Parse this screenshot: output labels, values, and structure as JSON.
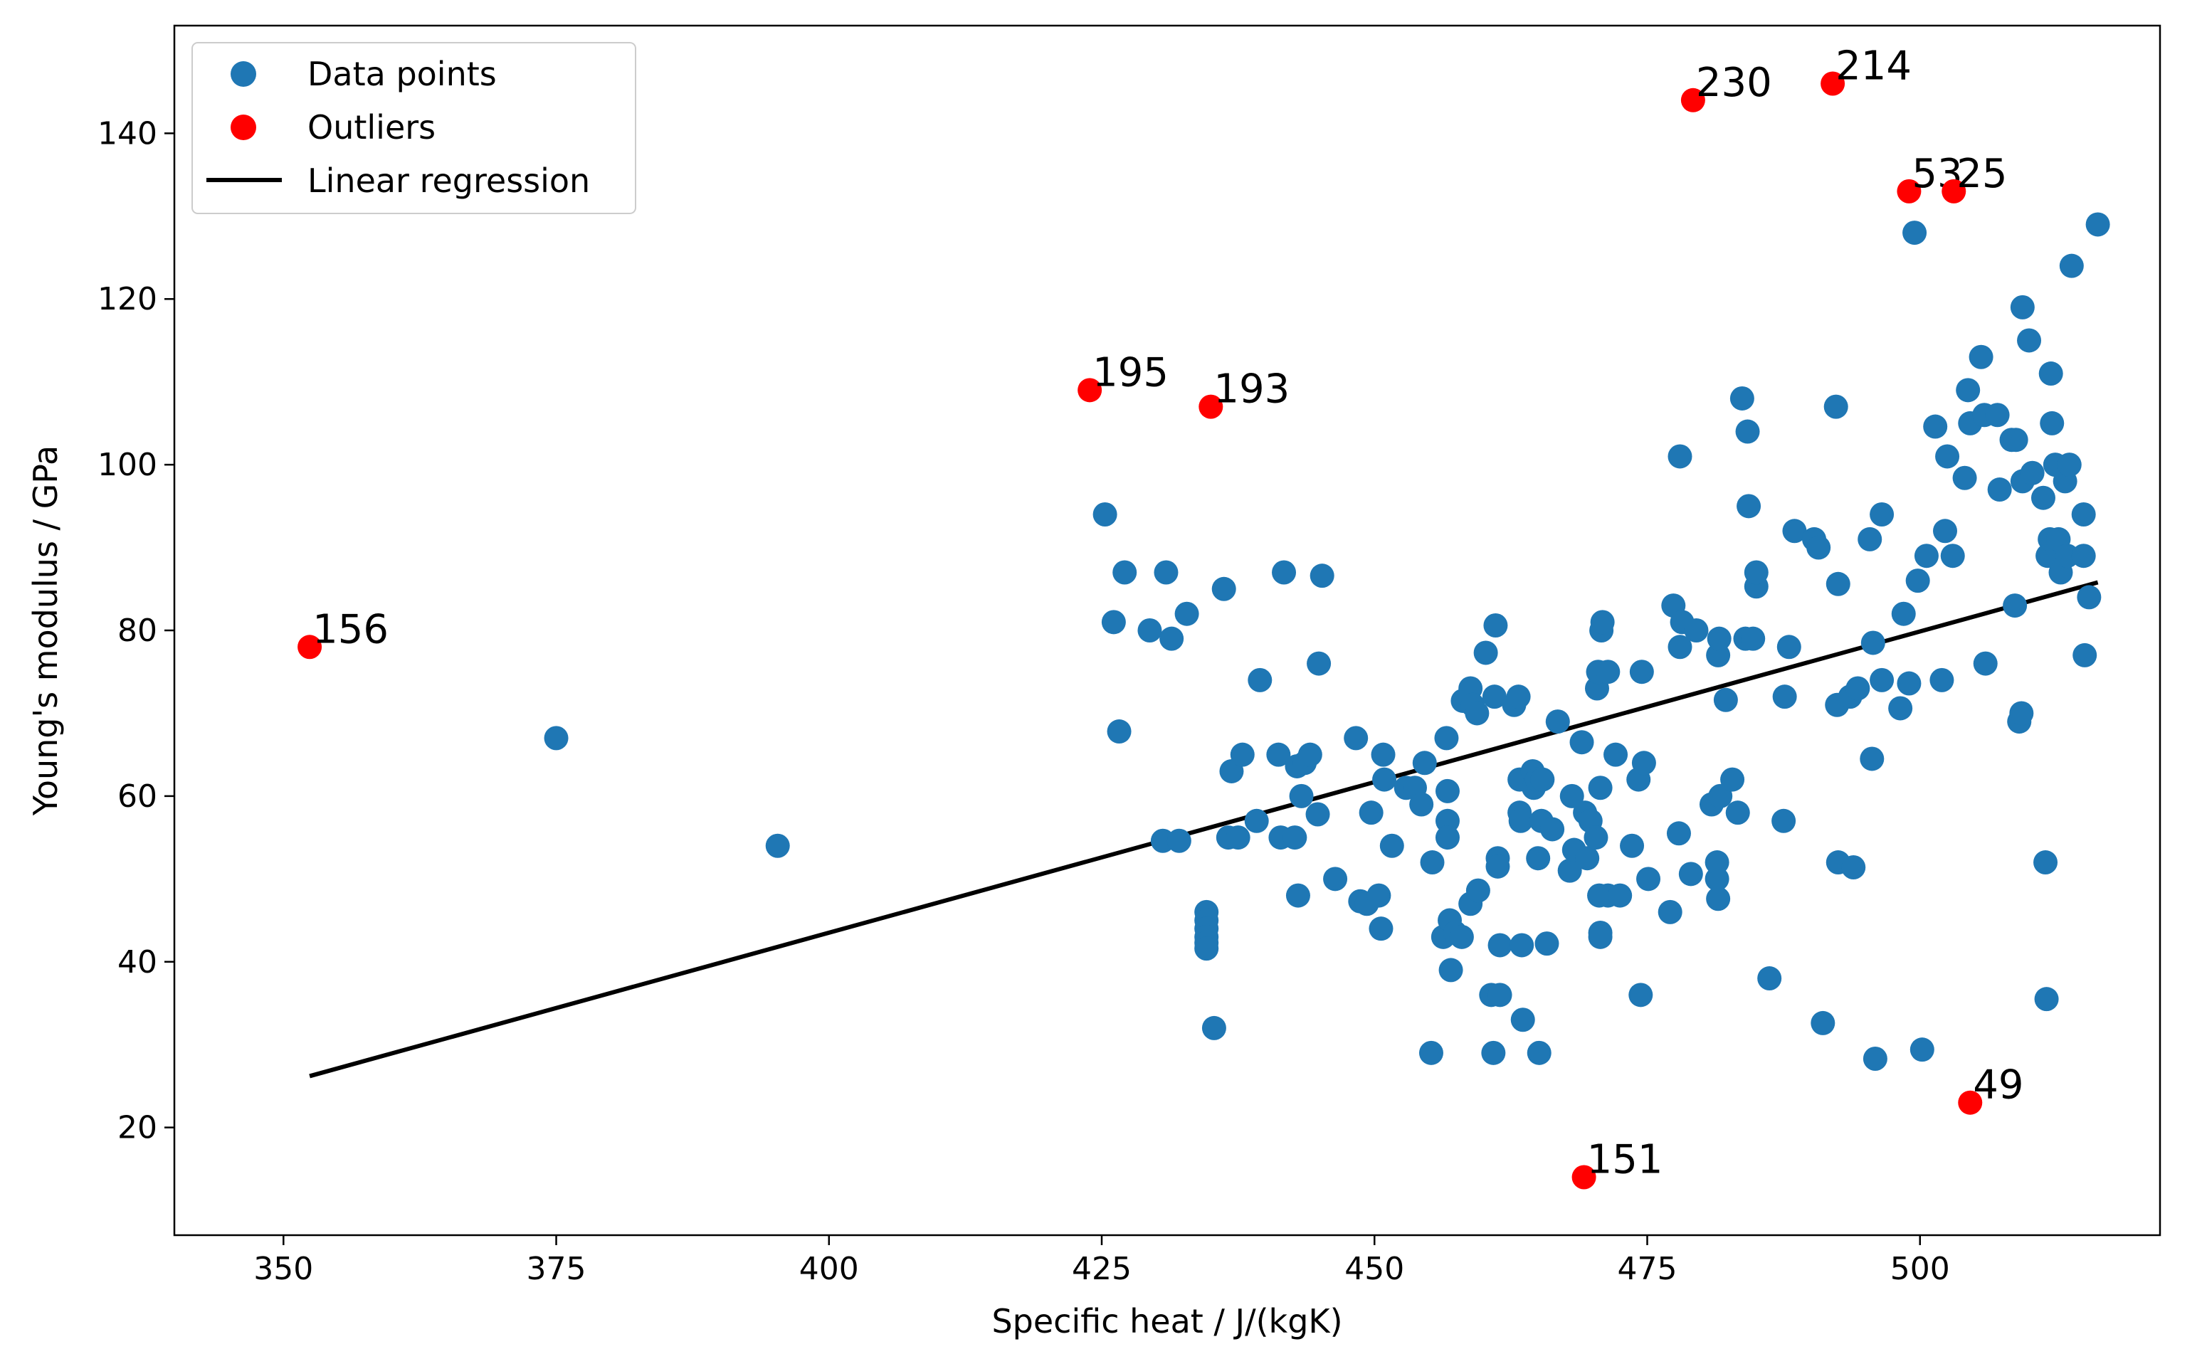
{
  "chart_data": {
    "type": "scatter",
    "xlabel": "Specific heat / J/(kgK)",
    "ylabel": "Young's modulus / GPa",
    "xlim": [
      340,
      522
    ],
    "ylim": [
      7,
      153
    ],
    "xticks": [
      350,
      375,
      400,
      425,
      450,
      475,
      500
    ],
    "yticks": [
      20,
      40,
      60,
      80,
      100,
      120,
      140
    ],
    "legend": {
      "position": "top-left",
      "entries": [
        {
          "label": "Data points",
          "kind": "marker",
          "color": "#1f77b4"
        },
        {
          "label": "Outliers",
          "kind": "marker",
          "color": "#ff0000"
        },
        {
          "label": "Linear regression",
          "kind": "line",
          "color": "#000000"
        }
      ]
    },
    "series": [
      {
        "name": "Data points",
        "color": "#1f77b4",
        "points": [
          [
            375,
            67
          ],
          [
            395.3,
            54
          ],
          [
            425.3,
            94
          ],
          [
            426.1,
            81
          ],
          [
            426.6,
            67.8
          ],
          [
            427.1,
            87
          ],
          [
            429.4,
            80
          ],
          [
            430.6,
            54.6
          ],
          [
            430.9,
            87
          ],
          [
            431.4,
            79
          ],
          [
            432.1,
            54.6
          ],
          [
            432.8,
            82
          ],
          [
            434.6,
            46
          ],
          [
            434.6,
            45
          ],
          [
            434.6,
            44
          ],
          [
            434.6,
            43
          ],
          [
            434.6,
            42.3
          ],
          [
            434.6,
            41.6
          ],
          [
            435.3,
            32
          ],
          [
            436.2,
            85
          ],
          [
            436.6,
            55
          ],
          [
            436.9,
            63
          ],
          [
            437.5,
            55
          ],
          [
            437.9,
            65
          ],
          [
            439.2,
            57
          ],
          [
            439.5,
            74
          ],
          [
            441.2,
            65
          ],
          [
            441.4,
            55
          ],
          [
            441.7,
            87
          ],
          [
            442.7,
            55
          ],
          [
            442.9,
            63.6
          ],
          [
            443,
            48
          ],
          [
            443.3,
            60
          ],
          [
            443.6,
            64
          ],
          [
            444.1,
            65
          ],
          [
            444.8,
            57.8
          ],
          [
            444.9,
            76
          ],
          [
            445.2,
            86.6
          ],
          [
            446.4,
            50
          ],
          [
            448.3,
            67
          ],
          [
            448.7,
            47.3
          ],
          [
            449.3,
            47
          ],
          [
            449.7,
            58
          ],
          [
            450.4,
            48
          ],
          [
            450.6,
            44
          ],
          [
            450.8,
            65
          ],
          [
            450.9,
            62
          ],
          [
            451.6,
            54
          ],
          [
            452.9,
            61
          ],
          [
            453.7,
            61
          ],
          [
            454.3,
            59
          ],
          [
            454.6,
            64
          ],
          [
            455.2,
            29
          ],
          [
            455.3,
            52
          ],
          [
            456.3,
            43
          ],
          [
            456.6,
            67
          ],
          [
            456.7,
            60.6
          ],
          [
            456.7,
            57
          ],
          [
            456.7,
            55
          ],
          [
            456.9,
            45
          ],
          [
            457,
            39
          ],
          [
            457.4,
            43.5
          ],
          [
            458,
            43
          ],
          [
            458.1,
            71.5
          ],
          [
            458.8,
            73
          ],
          [
            458.8,
            47
          ],
          [
            459,
            71
          ],
          [
            459.4,
            70
          ],
          [
            459.5,
            48.6
          ],
          [
            460.2,
            77.3
          ],
          [
            460.7,
            36
          ],
          [
            460.9,
            29
          ],
          [
            461,
            72
          ],
          [
            461.1,
            80.6
          ],
          [
            461.3,
            52.5
          ],
          [
            461.3,
            51.5
          ],
          [
            461.5,
            42
          ],
          [
            461.5,
            36
          ],
          [
            462.8,
            71
          ],
          [
            463.2,
            72
          ],
          [
            463.3,
            62
          ],
          [
            463.3,
            58
          ],
          [
            463.4,
            57
          ],
          [
            463.5,
            42
          ],
          [
            463.6,
            33
          ],
          [
            464.5,
            63
          ],
          [
            464.6,
            61
          ],
          [
            464.9,
            62
          ],
          [
            465,
            52.5
          ],
          [
            465.1,
            29
          ],
          [
            465.3,
            57
          ],
          [
            465.4,
            62
          ],
          [
            465.8,
            42.2
          ],
          [
            466.3,
            56
          ],
          [
            466.8,
            69
          ],
          [
            467.9,
            51
          ],
          [
            468.1,
            60
          ],
          [
            468.3,
            53.5
          ],
          [
            469,
            66.5
          ],
          [
            469.3,
            58
          ],
          [
            469.5,
            52.5
          ],
          [
            469.8,
            57
          ],
          [
            470.3,
            55
          ],
          [
            470.4,
            73
          ],
          [
            470.5,
            75
          ],
          [
            470.6,
            48
          ],
          [
            470.7,
            43.5
          ],
          [
            470.7,
            43
          ],
          [
            470.7,
            61
          ],
          [
            470.8,
            80
          ],
          [
            470.9,
            81
          ],
          [
            471.4,
            75
          ],
          [
            471.4,
            48
          ],
          [
            472.1,
            65
          ],
          [
            472.5,
            48
          ],
          [
            473.6,
            54
          ],
          [
            474.2,
            62
          ],
          [
            474.4,
            36
          ],
          [
            474.5,
            75
          ],
          [
            474.7,
            64
          ],
          [
            475.1,
            50
          ],
          [
            477.1,
            46
          ],
          [
            477.4,
            83
          ],
          [
            477.9,
            55.5
          ],
          [
            478,
            101
          ],
          [
            478,
            78
          ],
          [
            478.2,
            81
          ],
          [
            479,
            50.6
          ],
          [
            479.5,
            80
          ],
          [
            480.9,
            59
          ],
          [
            481.4,
            50
          ],
          [
            481.4,
            52
          ],
          [
            481.5,
            47.6
          ],
          [
            481.5,
            77
          ],
          [
            481.6,
            79
          ],
          [
            481.7,
            60
          ],
          [
            482.2,
            71.6
          ],
          [
            482.8,
            62
          ],
          [
            483.3,
            58
          ],
          [
            483.7,
            108
          ],
          [
            484,
            79
          ],
          [
            484.2,
            104
          ],
          [
            484.3,
            95
          ],
          [
            484.7,
            79
          ],
          [
            485,
            85.3
          ],
          [
            485,
            87
          ],
          [
            486.2,
            38
          ],
          [
            487.5,
            57
          ],
          [
            487.6,
            72
          ],
          [
            488,
            78
          ],
          [
            488.5,
            92
          ],
          [
            490.3,
            91
          ],
          [
            490.7,
            90
          ],
          [
            491.1,
            32.6
          ],
          [
            492.3,
            107
          ],
          [
            492.4,
            71
          ],
          [
            492.5,
            85.6
          ],
          [
            492.5,
            52
          ],
          [
            493.6,
            72
          ],
          [
            493.9,
            51.4
          ],
          [
            494.3,
            73
          ],
          [
            495.7,
            78.5
          ],
          [
            495.4,
            91
          ],
          [
            495.6,
            64.5
          ],
          [
            495.9,
            28.3
          ],
          [
            496.5,
            74
          ],
          [
            496.5,
            94
          ],
          [
            498.2,
            70.6
          ],
          [
            498.5,
            82
          ],
          [
            499,
            73.6
          ],
          [
            499.5,
            128
          ],
          [
            499.8,
            86
          ],
          [
            500.2,
            29.4
          ],
          [
            500.6,
            89
          ],
          [
            501.4,
            104.6
          ],
          [
            502,
            74
          ],
          [
            502.3,
            92
          ],
          [
            502.5,
            101
          ],
          [
            503,
            89
          ],
          [
            504.1,
            98.4
          ],
          [
            504.4,
            109
          ],
          [
            504.6,
            105
          ],
          [
            505.6,
            113
          ],
          [
            505.9,
            106
          ],
          [
            506,
            76
          ],
          [
            507.1,
            106
          ],
          [
            507.3,
            97
          ],
          [
            508.4,
            103
          ],
          [
            508.7,
            83
          ],
          [
            508.8,
            103
          ],
          [
            509.1,
            69
          ],
          [
            509.3,
            70
          ],
          [
            509.4,
            119
          ],
          [
            509.4,
            98
          ],
          [
            510,
            115
          ],
          [
            510.3,
            99
          ],
          [
            511.3,
            96
          ],
          [
            511.5,
            52
          ],
          [
            511.6,
            35.5
          ],
          [
            511.7,
            89
          ],
          [
            511.9,
            91
          ],
          [
            512,
            111
          ],
          [
            512.1,
            105
          ],
          [
            512.4,
            100
          ],
          [
            512.7,
            91
          ],
          [
            512.9,
            87
          ],
          [
            513.3,
            98
          ],
          [
            513.5,
            89
          ],
          [
            513.7,
            100
          ],
          [
            513.9,
            124
          ],
          [
            515,
            94
          ],
          [
            515,
            89
          ],
          [
            515.1,
            77
          ],
          [
            515.5,
            84
          ],
          [
            516.3,
            129
          ]
        ]
      },
      {
        "name": "Outliers",
        "color": "#ff0000",
        "points": [
          {
            "x": 352.4,
            "y": 78,
            "label": "156"
          },
          {
            "x": 423.9,
            "y": 109,
            "label": "195"
          },
          {
            "x": 435,
            "y": 107,
            "label": "193"
          },
          {
            "x": 469.2,
            "y": 14,
            "label": "151"
          },
          {
            "x": 479.2,
            "y": 144,
            "label": "230"
          },
          {
            "x": 492,
            "y": 146,
            "label": "214"
          },
          {
            "x": 499,
            "y": 133,
            "label": "53"
          },
          {
            "x": 503.1,
            "y": 133,
            "label": "25"
          },
          {
            "x": 504.6,
            "y": 23,
            "label": "49"
          }
        ]
      },
      {
        "name": "Linear regression",
        "color": "#000000",
        "line": [
          [
            352.4,
            26.2
          ],
          [
            516.3,
            85.8
          ]
        ]
      }
    ]
  }
}
